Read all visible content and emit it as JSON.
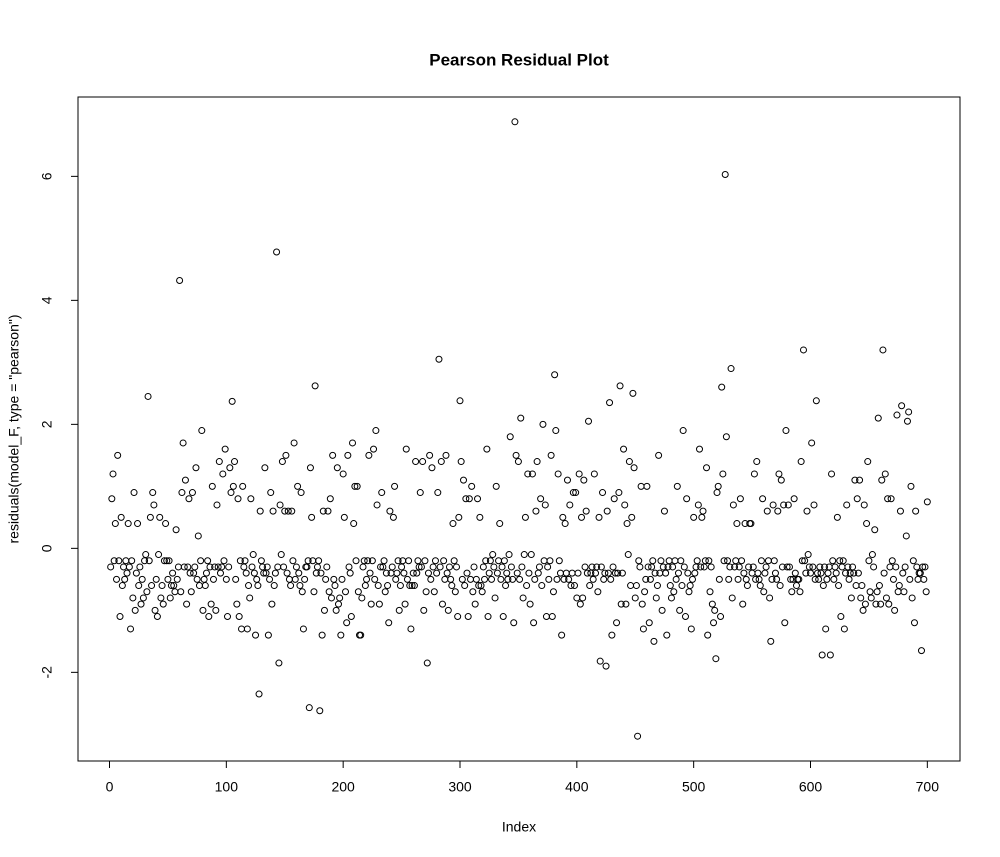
{
  "chart_data": {
    "type": "scatter",
    "title": "Pearson Residual Plot",
    "x_label": "Index",
    "y_label": "residuals(model_F, type = \"pearson\")",
    "xlim": [
      -26.96,
      727.96
    ],
    "xticks": [
      0,
      100,
      200,
      300,
      400,
      500,
      600,
      700
    ],
    "ylim": [
      -3.43,
      7.28
    ],
    "yticks": [
      -2,
      0,
      2,
      4,
      6
    ],
    "color": "#000000",
    "grid": false,
    "values": [
      -0.3,
      0.8,
      1.2,
      -0.2,
      0.4,
      -0.5,
      1.5,
      -0.2,
      -1.1,
      0.5,
      -0.6,
      -0.3,
      -0.5,
      -0.2,
      -0.4,
      0.4,
      -0.3,
      -1.3,
      -0.2,
      -0.8,
      0.9,
      -1,
      -0.4,
      0.4,
      -0.6,
      -0.3,
      -0.9,
      -0.5,
      -0.8,
      -0.2,
      -0.1,
      -0.7,
      2.45,
      -0.2,
      0.5,
      -0.6,
      0.9,
      0.7,
      -1,
      -0.5,
      -1.1,
      -0.1,
      0.5,
      -0.8,
      -0.6,
      -0.9,
      -0.2,
      0.4,
      -0.2,
      -0.5,
      -0.2,
      -0.8,
      -0.6,
      -0.4,
      -0.6,
      -0.7,
      0.3,
      -0.5,
      -0.3,
      4.32,
      -0.7,
      0.9,
      1.7,
      -0.3,
      1.1,
      -0.9,
      -0.3,
      0.8,
      -0.4,
      -0.7,
      0.9,
      -0.4,
      -0.3,
      1.3,
      -0.5,
      0.2,
      -0.6,
      -0.2,
      1.9,
      -1,
      -0.5,
      -0.6,
      -0.4,
      -0.2,
      -1.1,
      -0.3,
      -0.9,
      1,
      -0.5,
      -0.3,
      -1,
      0.7,
      -0.3,
      1.4,
      -0.4,
      -0.3,
      1.2,
      -0.2,
      1.6,
      -0.5,
      -1.1,
      -0.3,
      1.3,
      0.9,
      2.37,
      1,
      1.4,
      -0.5,
      -0.9,
      0.8,
      -1.1,
      -0.2,
      -1.3,
      1,
      -0.3,
      -0.2,
      -0.4,
      -1.3,
      -0.6,
      -0.8,
      0.8,
      -0.3,
      -0.1,
      -0.4,
      -1.4,
      -0.5,
      -0.6,
      -2.35,
      0.6,
      -0.2,
      -0.3,
      -0.4,
      1.3,
      -0.4,
      -0.3,
      -1.4,
      -0.5,
      0.9,
      -0.9,
      0.6,
      -0.6,
      -0.4,
      4.78,
      -0.3,
      -1.85,
      0.7,
      -0.1,
      1.4,
      -0.3,
      0.6,
      1.5,
      -0.4,
      0.6,
      -0.5,
      -0.6,
      0.6,
      -0.2,
      1.7,
      -0.5,
      -0.3,
      1,
      -0.4,
      -0.6,
      0.9,
      -0.7,
      -1.3,
      -0.5,
      -0.3,
      -0.3,
      -0.2,
      -2.57,
      1.3,
      0.5,
      -0.2,
      -0.7,
      2.62,
      -0.4,
      -0.3,
      -0.2,
      -2.62,
      -0.4,
      -1.4,
      0.6,
      -1,
      -0.5,
      -0.3,
      0.6,
      -0.7,
      0.8,
      -0.8,
      1.5,
      -0.5,
      -0.6,
      -1,
      1.3,
      -0.9,
      -0.8,
      -1.4,
      -0.5,
      1.2,
      0.5,
      -0.7,
      -1.2,
      1.5,
      -0.3,
      -0.4,
      -1.1,
      1.7,
      0.4,
      1,
      -0.2,
      1,
      -0.7,
      -1.4,
      -1.4,
      -0.8,
      -0.3,
      -0.2,
      -0.6,
      -0.5,
      -0.2,
      1.5,
      -0.4,
      -0.9,
      -0.2,
      1.6,
      -0.5,
      1.9,
      0.7,
      -0.6,
      -0.9,
      -0.3,
      0.9,
      -0.3,
      -0.2,
      -0.7,
      -0.4,
      -0.6,
      -1.2,
      0.6,
      -0.4,
      -0.3,
      0.5,
      1,
      -0.5,
      -0.4,
      -0.2,
      -1,
      -0.6,
      -0.3,
      -0.2,
      -0.4,
      -0.9,
      1.6,
      -0.5,
      -0.2,
      -0.6,
      -1.3,
      -0.6,
      -0.4,
      -0.6,
      1.4,
      -0.4,
      -0.2,
      -0.3,
      0.9,
      -0.3,
      1.4,
      -1,
      -0.2,
      -0.7,
      -1.85,
      -0.4,
      1.5,
      -0.5,
      1.3,
      -0.3,
      -0.7,
      -0.2,
      -0.4,
      0.9,
      3.05,
      -0.3,
      1.4,
      -0.9,
      -0.2,
      -0.5,
      1.5,
      -0.4,
      -1,
      -0.3,
      -0.5,
      -0.6,
      0.4,
      -0.2,
      -0.7,
      -0.3,
      -1.1,
      0.5,
      2.38,
      1.4,
      -0.5,
      1.1,
      -0.6,
      0.8,
      -0.4,
      -1.1,
      0.8,
      -0.5,
      1,
      -0.7,
      -0.3,
      -0.9,
      -0.5,
      0.8,
      -0.6,
      0.5,
      -0.6,
      -0.7,
      -0.3,
      -0.5,
      -0.2,
      1.6,
      -1.1,
      -0.4,
      -0.2,
      -0.5,
      -0.1,
      -0.3,
      -0.8,
      1,
      -0.4,
      -0.2,
      0.4,
      -0.5,
      -0.3,
      -1.1,
      -0.2,
      -0.6,
      -0.4,
      -0.5,
      -0.1,
      1.8,
      -0.3,
      -0.5,
      -1.2,
      6.88,
      1.5,
      -0.4,
      1.4,
      -0.5,
      2.1,
      -0.3,
      -0.8,
      -0.1,
      0.5,
      -0.6,
      1.2,
      -0.4,
      -0.9,
      -0.1,
      1.2,
      -1.2,
      -0.5,
      0.6,
      1.4,
      -0.4,
      -0.3,
      0.8,
      -0.6,
      2,
      -0.2,
      0.7,
      -1.1,
      -0.3,
      -0.5,
      -0.2,
      1.5,
      -1.1,
      -0.7,
      2.8,
      1.9,
      -0.5,
      1.2,
      -0.2,
      -0.4,
      -1.4,
      0.5,
      -0.5,
      0.4,
      -0.4,
      1.1,
      -0.5,
      0.7,
      -0.6,
      -0.4,
      0.9,
      -0.6,
      0.9,
      -0.8,
      -0.4,
      1.2,
      -0.9,
      0.5,
      -0.8,
      1.1,
      -0.3,
      0.6,
      -0.4,
      2.05,
      -0.6,
      -0.4,
      -0.3,
      -0.5,
      1.2,
      -0.4,
      -0.3,
      -0.7,
      0.5,
      -1.82,
      -0.3,
      0.9,
      -0.5,
      -0.4,
      -1.9,
      0.6,
      -0.4,
      2.35,
      -0.5,
      -1.4,
      -0.3,
      0.8,
      -0.4,
      -1.2,
      -0.4,
      0.9,
      2.62,
      -0.9,
      -0.4,
      1.6,
      0.7,
      -0.9,
      0.4,
      -0.1,
      1.4,
      -0.6,
      0.5,
      2.5,
      1.3,
      -0.8,
      -0.6,
      -3.03,
      -0.2,
      -0.3,
      1,
      -0.9,
      -1.3,
      -0.7,
      -0.5,
      1,
      -0.3,
      -1.2,
      -0.5,
      -0.3,
      -0.2,
      -1.5,
      -0.4,
      -0.8,
      -0.6,
      1.5,
      -0.4,
      -0.2,
      -1,
      -0.3,
      0.6,
      -0.4,
      -1.4,
      -0.3,
      -0.2,
      -0.6,
      -0.8,
      -0.3,
      -0.7,
      -0.2,
      -0.5,
      1,
      -0.4,
      -1,
      -0.2,
      -0.6,
      1.9,
      -0.3,
      -1.1,
      0.8,
      -0.4,
      -0.7,
      -0.6,
      -1.3,
      -0.5,
      0.5,
      -0.4,
      -0.3,
      -0.2,
      0.7,
      1.6,
      -0.3,
      0.5,
      0.6,
      -0.3,
      -0.2,
      1.3,
      -1.4,
      -0.2,
      -0.7,
      -0.3,
      -0.9,
      -1.2,
      -1,
      -1.78,
      0.9,
      1,
      -0.5,
      -1.1,
      2.6,
      1.2,
      -0.2,
      6.03,
      1.8,
      -0.2,
      -0.5,
      -0.3,
      2.9,
      -0.8,
      0.7,
      -0.3,
      -0.2,
      0.4,
      -0.5,
      -0.3,
      0.8,
      -0.2,
      -0.9,
      -0.4,
      0.4,
      -0.5,
      -0.6,
      -0.3,
      0.4,
      0.4,
      -0.4,
      -0.3,
      1.2,
      -0.5,
      1.4,
      -0.4,
      -0.5,
      -0.6,
      -0.2,
      0.8,
      -0.7,
      -0.4,
      -0.3,
      0.6,
      -0.2,
      -0.8,
      -1.5,
      -0.5,
      0.7,
      -0.2,
      -0.4,
      -0.5,
      0.6,
      1.2,
      -0.6,
      1.1,
      -0.3,
      0.7,
      -1.2,
      1.9,
      -0.3,
      0.7,
      -0.3,
      -0.5,
      -0.7,
      -0.5,
      0.8,
      -0.4,
      -0.6,
      -0.5,
      -0.5,
      -0.7,
      1.4,
      -0.2,
      3.2,
      -0.2,
      -0.4,
      0.6,
      -0.1,
      -0.3,
      -0.4,
      1.7,
      -0.3,
      0.7,
      -0.5,
      2.38,
      -0.4,
      -0.5,
      -0.3,
      -0.4,
      -1.72,
      -0.6,
      -0.3,
      -1.3,
      -0.5,
      -0.4,
      -0.3,
      -1.72,
      1.2,
      -0.2,
      -0.5,
      -0.3,
      -0.4,
      0.5,
      -0.6,
      -0.2,
      -1.1,
      -0.3,
      -0.2,
      -1.3,
      -0.4,
      0.7,
      -0.3,
      -0.5,
      -0.4,
      -0.8,
      -0.3,
      -0.4,
      1.1,
      -0.6,
      0.8,
      -0.4,
      1.1,
      -0.8,
      -0.6,
      -1,
      0.7,
      -0.9,
      0.4,
      1.4,
      -0.2,
      -0.7,
      -0.8,
      -0.1,
      -0.3,
      0.3,
      -0.9,
      -0.7,
      2.1,
      -0.6,
      -0.9,
      1.1,
      3.2,
      -0.4,
      1.2,
      -0.8,
      0.8,
      -0.9,
      -0.3,
      0.8,
      -0.2,
      -0.5,
      -1,
      -0.3,
      2.15,
      -0.7,
      -0.6,
      0.6,
      2.3,
      -0.4,
      -0.7,
      -0.3,
      0.2,
      2.05,
      2.2,
      -0.5,
      1,
      -0.8,
      -0.2,
      -1.2,
      0.6,
      -0.3,
      -0.5,
      -0.4,
      -0.4,
      -1.65,
      -0.3,
      -0.5,
      -0.3,
      -0.7,
      0.75
    ]
  }
}
